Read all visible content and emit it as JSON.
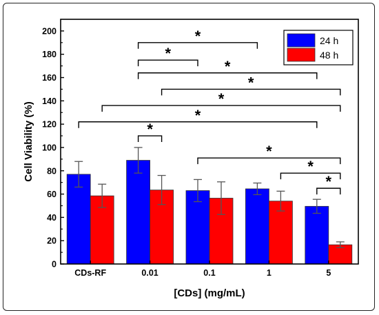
{
  "chart_data": {
    "type": "bar",
    "title": "",
    "xlabel": "[CDs] (mg/mL)",
    "ylabel": "Cell Viability (%)",
    "ylim": [
      0,
      210
    ],
    "yticks": [
      0,
      20,
      40,
      60,
      80,
      100,
      120,
      140,
      160,
      180,
      200
    ],
    "categories": [
      "CDs-RF",
      "0.01",
      "0.1",
      "1",
      "5"
    ],
    "series": [
      {
        "name": "24 h",
        "color": "#0000ff",
        "values": [
          77,
          89,
          63,
          64.5,
          49.5
        ],
        "errors": [
          11,
          11,
          9.5,
          5,
          6
        ]
      },
      {
        "name": "48 h",
        "color": "#ff0000",
        "values": [
          58.5,
          63.5,
          56.5,
          54,
          16.5
        ],
        "errors": [
          10,
          12.5,
          14,
          8.5,
          2.5
        ]
      }
    ],
    "legend_position": "top-right",
    "significance": [
      {
        "from": "0.01 / 24 h",
        "to": "1 / 24 h",
        "y": 190,
        "label": "*"
      },
      {
        "from": "0.01 / 24 h",
        "to": "0.1 / 24 h",
        "y": 175,
        "label": "*"
      },
      {
        "from": "0.01 / 24 h",
        "to": "5 / 24 h",
        "y": 164,
        "label": "*"
      },
      {
        "from": "0.01 / 48 h",
        "to": "5 / 48 h",
        "y": 150,
        "label": "*"
      },
      {
        "from": "CDs-RF / 48 h",
        "to": "5 / 48 h",
        "y": 136,
        "label": "*"
      },
      {
        "from": "CDs-RF / 24 h",
        "to": "5 / 24 h",
        "y": 122,
        "label": "*"
      },
      {
        "from": "0.01 / 24 h",
        "to": "0.01 / 48 h",
        "y": 110,
        "label": "*"
      },
      {
        "from": "0.1 / 24 h",
        "to": "5 / 48 h",
        "y": 91,
        "label": "*"
      },
      {
        "from": "1 / 48 h",
        "to": "5 / 48 h",
        "y": 78,
        "label": "*"
      },
      {
        "from": "5 / 24 h",
        "to": "5 / 48 h",
        "y": 65,
        "label": "*"
      }
    ]
  }
}
